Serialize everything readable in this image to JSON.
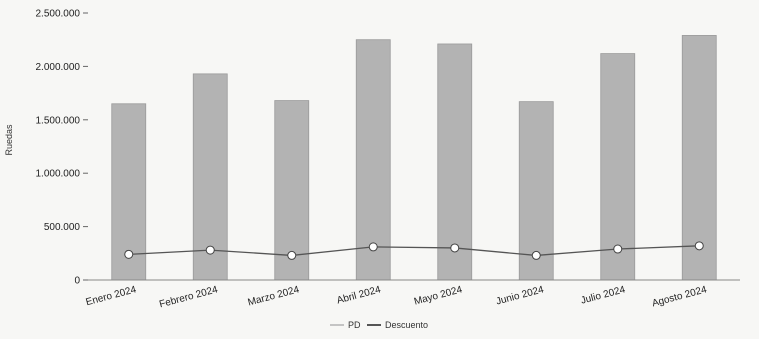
{
  "chart_data": {
    "type": "bar",
    "title": "",
    "xlabel": "",
    "ylabel": "Ruedas",
    "categories": [
      "Enero 2024",
      "Febrero 2024",
      "Marzo 2024",
      "Abril 2024",
      "Mayo 2024",
      "Junio 2024",
      "Julio 2024",
      "Agosto 2024"
    ],
    "series": [
      {
        "name": "PD",
        "type": "bar",
        "values": [
          1650000,
          1930000,
          1680000,
          2250000,
          2210000,
          1670000,
          2120000,
          2290000
        ],
        "color": "#b3b3b3"
      },
      {
        "name": "Descuento",
        "type": "line",
        "values": [
          240000,
          280000,
          230000,
          310000,
          300000,
          230000,
          290000,
          320000
        ],
        "color": "#555555"
      }
    ],
    "ylim": [
      0,
      2500000
    ],
    "yticks": [
      "0",
      "500.000",
      "1.000.000",
      "1.500.000",
      "2.000.000",
      "2.500.000"
    ],
    "grid": false,
    "legend_position": "bottom"
  },
  "legend": {
    "pd_label": "PD",
    "descuento_label": "Descuento"
  }
}
